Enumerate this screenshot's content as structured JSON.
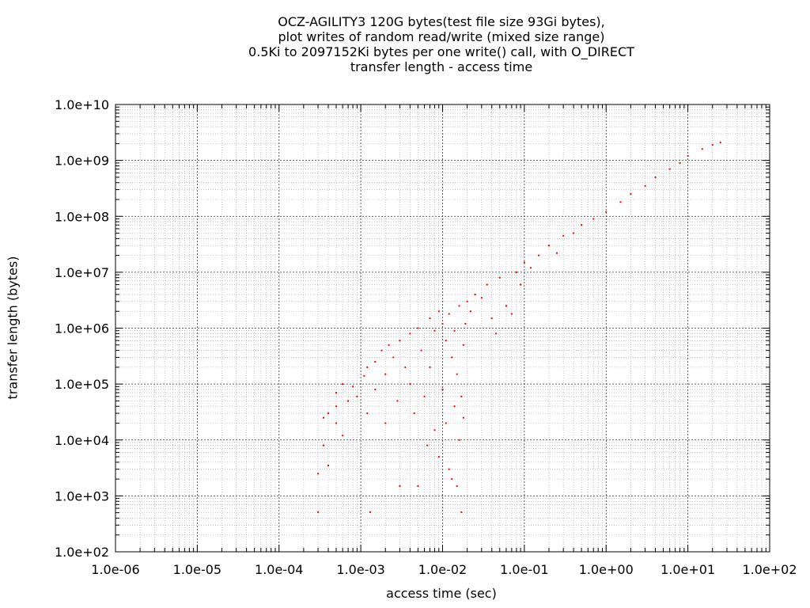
{
  "chart_data": {
    "type": "scatter",
    "title_lines": [
      "OCZ-AGILITY3 120G bytes(test file size 93Gi bytes),",
      "plot writes of random read/write (mixed size range)",
      "0.5Ki to 2097152Ki bytes per one write() call, with O_DIRECT",
      "transfer length - access time"
    ],
    "xlabel": "access time (sec)",
    "ylabel": "transfer length (bytes)",
    "xscale": "log",
    "yscale": "log",
    "xlim": [
      1e-06,
      100
    ],
    "ylim": [
      100,
      10000000000
    ],
    "x_tick_labels": [
      "1.0e-06",
      "1.0e-05",
      "1.0e-04",
      "1.0e-03",
      "1.0e-02",
      "1.0e-01",
      "1.0e+00",
      "1.0e+01",
      "1.0e+02"
    ],
    "y_tick_labels": [
      "1.0e+02",
      "1.0e+03",
      "1.0e+04",
      "1.0e+05",
      "1.0e+06",
      "1.0e+07",
      "1.0e+08",
      "1.0e+09",
      "1.0e+10"
    ],
    "grid": true,
    "marker_color": "#ff0000",
    "series": [
      {
        "points": [
          [
            0.0003,
            512
          ],
          [
            0.0003,
            2500
          ],
          [
            0.00035,
            8000
          ],
          [
            0.00035,
            25000
          ],
          [
            0.0004,
            30000
          ],
          [
            0.0004,
            3500
          ],
          [
            0.0005,
            20000
          ],
          [
            0.0005,
            40000
          ],
          [
            0.0005,
            70000
          ],
          [
            0.0006,
            100000
          ],
          [
            0.0006,
            12000
          ],
          [
            0.0007,
            50000
          ],
          [
            0.0008,
            90000
          ],
          [
            0.0009,
            60000
          ],
          [
            0.0011,
            140000
          ],
          [
            0.0012,
            200000
          ],
          [
            0.0012,
            30000
          ],
          [
            0.0013,
            512
          ],
          [
            0.0015,
            250000
          ],
          [
            0.0015,
            80000
          ],
          [
            0.0018,
            400000
          ],
          [
            0.002,
            150000
          ],
          [
            0.002,
            20000
          ],
          [
            0.0022,
            500000
          ],
          [
            0.0025,
            300000
          ],
          [
            0.0028,
            50000
          ],
          [
            0.003,
            600000
          ],
          [
            0.003,
            1500
          ],
          [
            0.0035,
            200000
          ],
          [
            0.004,
            800000
          ],
          [
            0.004,
            100000
          ],
          [
            0.0045,
            30000
          ],
          [
            0.005,
            1000000
          ],
          [
            0.005,
            1500
          ],
          [
            0.0055,
            400000
          ],
          [
            0.006,
            60000
          ],
          [
            0.0065,
            8000
          ],
          [
            0.007,
            1500000
          ],
          [
            0.007,
            200000
          ],
          [
            0.008,
            900000
          ],
          [
            0.008,
            15000
          ],
          [
            0.009,
            2000000
          ],
          [
            0.009,
            5000
          ],
          [
            0.01,
            1200000
          ],
          [
            0.01,
            80000
          ],
          [
            0.011,
            600000
          ],
          [
            0.011,
            20000
          ],
          [
            0.012,
            1800000
          ],
          [
            0.012,
            3000
          ],
          [
            0.013,
            300000
          ],
          [
            0.013,
            2000
          ],
          [
            0.014,
            900000
          ],
          [
            0.014,
            40000
          ],
          [
            0.015,
            1500
          ],
          [
            0.015,
            150000
          ],
          [
            0.016,
            2500000
          ],
          [
            0.016,
            10000
          ],
          [
            0.017,
            512
          ],
          [
            0.017,
            60000
          ],
          [
            0.018,
            500000
          ],
          [
            0.018,
            25000
          ],
          [
            0.019,
            1200000
          ],
          [
            0.02,
            3000000
          ],
          [
            0.022,
            2000000
          ],
          [
            0.025,
            4000000
          ],
          [
            0.03,
            3500000
          ],
          [
            0.035,
            6000000
          ],
          [
            0.04,
            1500000
          ],
          [
            0.045,
            800000
          ],
          [
            0.05,
            8000000
          ],
          [
            0.06,
            2500000
          ],
          [
            0.07,
            1800000
          ],
          [
            0.08,
            10000000
          ],
          [
            0.09,
            6000000
          ],
          [
            0.1,
            15000000
          ],
          [
            0.12,
            12000000
          ],
          [
            0.15,
            20000000
          ],
          [
            0.2,
            30000000
          ],
          [
            0.25,
            22000000
          ],
          [
            0.3,
            45000000
          ],
          [
            0.4,
            50000000
          ],
          [
            0.5,
            70000000
          ],
          [
            0.7,
            90000000
          ],
          [
            1.0,
            120000000
          ],
          [
            1.5,
            180000000
          ],
          [
            2.0,
            250000000
          ],
          [
            3.0,
            350000000
          ],
          [
            4.0,
            500000000
          ],
          [
            6.0,
            700000000
          ],
          [
            8.0,
            900000000
          ],
          [
            10.0,
            1200000000
          ],
          [
            15.0,
            1600000000
          ],
          [
            20.0,
            1900000000
          ],
          [
            25.0,
            2100000000
          ]
        ]
      }
    ]
  }
}
